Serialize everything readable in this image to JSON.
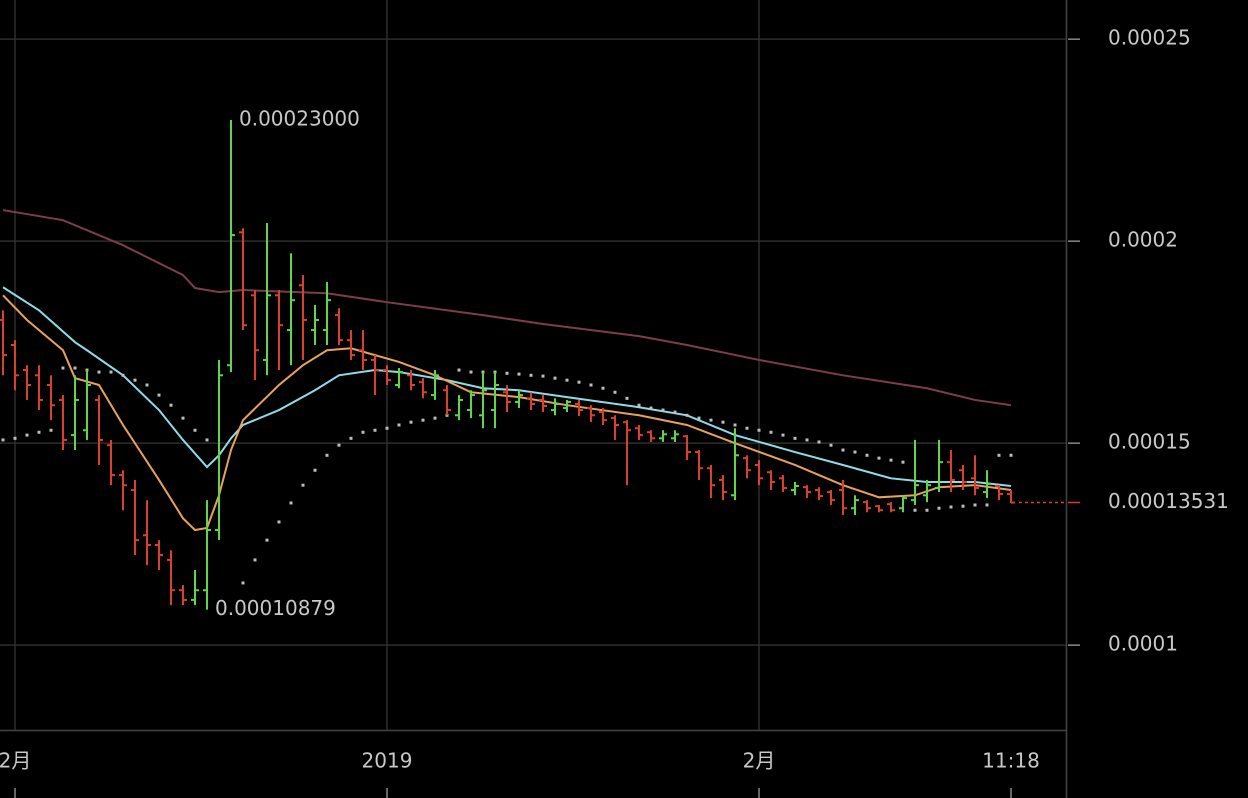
{
  "chart_data": {
    "type": "ohlc",
    "categories": [
      null,
      "2月",
      null,
      null,
      null,
      null,
      null,
      null,
      null,
      null,
      null,
      null,
      null,
      null,
      null,
      null,
      null,
      null,
      null,
      null,
      null,
      null,
      null,
      null,
      null,
      null,
      null,
      null,
      null,
      null,
      null,
      null,
      "2019",
      null,
      null,
      null,
      null,
      null,
      null,
      null,
      null,
      null,
      null,
      null,
      null,
      null,
      null,
      null,
      null,
      null,
      null,
      null,
      null,
      null,
      null,
      null,
      null,
      null,
      null,
      null,
      null,
      null,
      null,
      "2月",
      null,
      null,
      null,
      null,
      null,
      null,
      null,
      null,
      null,
      null,
      null,
      null,
      null,
      null,
      null,
      null,
      null,
      null,
      null,
      null,
      "11:18"
    ],
    "open": [
      0.0001805,
      0.0001743,
      0.0001681,
      0.0001668,
      0.0001644,
      0.0001607,
      0.000152,
      0.0001532,
      0.0001607,
      0.0001495,
      0.0001421,
      0.0001384,
      0.0001272,
      0.0001248,
      0.0001211,
      0.0001136,
      0.0001112,
      0.0001136,
      0.0001285,
      0.0001693,
      0.0002022,
      0.0001866,
      0.0001706,
      0.0001866,
      0.000178,
      0.0001891,
      0.000178,
      0.000178,
      0.0001817,
      0.0001755,
      0.000173,
      0.0001706,
      0.0001681,
      0.0001644,
      0.0001668,
      0.0001651,
      0.0001619,
      0.0001631,
      0.0001569,
      0.0001582,
      0.0001569,
      0.0001582,
      0.0001626,
      0.0001602,
      0.0001611,
      0.0001607,
      0.0001582,
      0.0001587,
      0.0001597,
      0.0001587,
      0.0001577,
      0.0001562,
      0.0001552,
      0.0001537,
      0.0001527,
      0.0001512,
      0.0001512,
      0.0001517,
      0.0001478,
      0.0001438,
      0.0001409,
      0.0001371,
      0.0001463,
      0.0001446,
      0.0001428,
      0.0001413,
      0.0001384,
      0.0001391,
      0.0001384,
      0.0001379,
      0.0001384,
      0.0001339,
      0.0001354,
      0.0001344,
      0.0001349,
      0.0001339,
      0.0001359,
      0.0001371,
      0.0001389,
      0.0001453,
      0.0001433,
      0.0001413,
      0.0001379,
      0.0001394,
      0.0001374
    ],
    "high": [
      0.0001829,
      0.0001755,
      0.0001693,
      0.0001693,
      0.0001668,
      0.0001619,
      0.0001668,
      0.0001681,
      0.0001619,
      0.0001508,
      0.0001433,
      0.0001409,
      0.0001359,
      0.000126,
      0.0001235,
      0.0001149,
      0.0001186,
      0.0001359,
      0.0001706,
      0.00023,
      0.0002032,
      0.0001879,
      0.0002045,
      0.0001879,
      0.000197,
      0.0001916,
      0.0001842,
      0.0001899,
      0.0001834,
      0.000178,
      0.000178,
      0.0001718,
      0.0001693,
      0.0001686,
      0.0001681,
      0.0001661,
      0.0001681,
      0.0001644,
      0.0001619,
      0.0001631,
      0.0001676,
      0.0001676,
      0.0001644,
      0.0001631,
      0.0001626,
      0.0001619,
      0.0001611,
      0.0001607,
      0.0001607,
      0.0001594,
      0.0001587,
      0.0001569,
      0.0001557,
      0.0001545,
      0.0001532,
      0.0001532,
      0.0001532,
      0.000152,
      0.0001483,
      0.0001446,
      0.0001421,
      0.0001537,
      0.000147,
      0.0001458,
      0.0001433,
      0.0001421,
      0.0001404,
      0.0001396,
      0.0001391,
      0.0001384,
      0.0001409,
      0.0001371,
      0.0001359,
      0.0001347,
      0.0001354,
      0.0001371,
      0.0001508,
      0.0001409,
      0.0001508,
      0.0001483,
      0.0001446,
      0.000147,
      0.0001433,
      0.0001396,
      0.0001384
    ],
    "low": [
      0.0001668,
      0.0001631,
      0.0001607,
      0.0001582,
      0.0001557,
      0.0001483,
      0.0001483,
      0.0001508,
      0.0001446,
      0.0001396,
      0.0001334,
      0.0001223,
      0.0001198,
      0.0001186,
      0.0001099,
      0.0001099,
      0.0001099,
      0.00010879,
      0.000126,
      0.0001676,
      0.000178,
      0.0001656,
      0.0001668,
      0.0001681,
      0.0001693,
      0.0001706,
      0.0001743,
      0.0001743,
      0.0001743,
      0.0001706,
      0.0001681,
      0.0001619,
      0.0001644,
      0.0001636,
      0.0001631,
      0.0001611,
      0.0001607,
      0.0001569,
      0.0001557,
      0.0001562,
      0.0001537,
      0.0001537,
      0.0001577,
      0.0001587,
      0.0001582,
      0.0001577,
      0.0001569,
      0.0001577,
      0.0001567,
      0.0001552,
      0.0001545,
      0.0001508,
      0.0001396,
      0.0001508,
      0.0001503,
      0.0001503,
      0.0001503,
      0.0001458,
      0.0001409,
      0.0001364,
      0.0001359,
      0.0001359,
      0.0001413,
      0.0001396,
      0.0001384,
      0.0001379,
      0.0001371,
      0.0001364,
      0.0001359,
      0.0001347,
      0.0001322,
      0.0001322,
      0.0001329,
      0.0001329,
      0.0001329,
      0.0001329,
      0.0001347,
      0.0001354,
      0.0001379,
      0.0001379,
      0.0001384,
      0.0001371,
      0.0001364,
      0.0001359,
      0.0001352
    ],
    "close": [
      0.0001718,
      0.0001668,
      0.0001644,
      0.0001607,
      0.0001594,
      0.0001508,
      0.0001607,
      0.0001644,
      0.0001508,
      0.0001421,
      0.0001396,
      0.000126,
      0.0001248,
      0.0001223,
      0.0001136,
      0.0001112,
      0.0001136,
      0.0001285,
      0.0001668,
      0.0002015,
      0.0001792,
      0.000173,
      0.0001866,
      0.0001792,
      0.0001854,
      0.0001805,
      0.0001805,
      0.0001854,
      0.0001755,
      0.0001718,
      0.0001706,
      0.0001681,
      0.0001656,
      0.0001676,
      0.0001644,
      0.0001626,
      0.0001668,
      0.0001582,
      0.0001607,
      0.0001619,
      0.0001631,
      0.0001644,
      0.0001602,
      0.0001619,
      0.0001597,
      0.0001592,
      0.0001597,
      0.0001602,
      0.0001582,
      0.0001569,
      0.0001557,
      0.0001545,
      0.0001532,
      0.000152,
      0.0001512,
      0.0001522,
      0.0001522,
      0.0001478,
      0.0001438,
      0.0001396,
      0.0001379,
      0.000147,
      0.0001433,
      0.0001413,
      0.0001404,
      0.0001389,
      0.0001394,
      0.0001379,
      0.0001369,
      0.0001359,
      0.0001339,
      0.0001359,
      0.0001339,
      0.0001334,
      0.0001334,
      0.0001364,
      0.0001396,
      0.0001396,
      0.0001453,
      0.0001409,
      0.0001404,
      0.0001389,
      0.0001399,
      0.0001374,
      0.00013531
    ],
    "colors": {
      "up": "#5ed64a",
      "down": "#d8412f"
    },
    "lines": [
      {
        "color": "#7e3d4c",
        "x": [
          0,
          5,
          10,
          15,
          16,
          18,
          20,
          27,
          32,
          40,
          45,
          53,
          57,
          63,
          70,
          77,
          81,
          84
        ],
        "values": [
          0.0002077,
          0.0002052,
          0.000199,
          0.0001916,
          0.0001884,
          0.0001874,
          0.0001879,
          0.0001871,
          0.0001849,
          0.0001817,
          0.0001795,
          0.0001765,
          0.0001743,
          0.0001706,
          0.0001668,
          0.0001636,
          0.0001607,
          0.0001594
        ]
      },
      {
        "color": "#8fdbe8",
        "x": [
          0,
          3,
          6,
          7,
          10,
          13,
          15,
          17,
          18,
          19,
          20,
          23,
          26,
          28,
          31,
          33,
          37,
          40,
          43,
          47,
          53,
          57,
          61,
          66,
          70,
          74,
          77,
          81,
          84
        ],
        "values": [
          0.0001886,
          0.0001829,
          0.000175,
          0.000173,
          0.0001668,
          0.0001582,
          0.0001508,
          0.0001441,
          0.000147,
          0.0001512,
          0.0001545,
          0.0001582,
          0.0001631,
          0.0001668,
          0.0001681,
          0.0001676,
          0.0001656,
          0.0001636,
          0.0001631,
          0.0001614,
          0.0001589,
          0.0001569,
          0.000152,
          0.0001478,
          0.0001446,
          0.0001413,
          0.0001404,
          0.0001404,
          0.0001394
        ]
      },
      {
        "color": "#e9a15c",
        "x": [
          0,
          2,
          5,
          6,
          8,
          10,
          13,
          15,
          16,
          17,
          18,
          19,
          20,
          23,
          25,
          27,
          29,
          31,
          33,
          36,
          39,
          43,
          47,
          53,
          57,
          61,
          66,
          70,
          73,
          76,
          78,
          81,
          84
        ],
        "values": [
          0.0001866,
          0.0001805,
          0.000173,
          0.0001661,
          0.0001644,
          0.0001545,
          0.0001409,
          0.0001314,
          0.0001285,
          0.000129,
          0.0001371,
          0.0001483,
          0.0001557,
          0.0001644,
          0.0001693,
          0.000173,
          0.0001735,
          0.0001718,
          0.0001701,
          0.0001668,
          0.0001626,
          0.0001614,
          0.0001594,
          0.0001569,
          0.0001545,
          0.00015,
          0.0001446,
          0.0001396,
          0.0001366,
          0.0001371,
          0.0001391,
          0.0001396,
          0.0001384
        ]
      }
    ],
    "dots": {
      "color": "#bdbdbd",
      "x": [
        0,
        1,
        2,
        3,
        4,
        5,
        6,
        7,
        8,
        9,
        10,
        11,
        12,
        13,
        14,
        15,
        16,
        17,
        20,
        21,
        22,
        23,
        24,
        25,
        26,
        27,
        28,
        29,
        30,
        31,
        32,
        33,
        34,
        35,
        36,
        37,
        38,
        39,
        40,
        41,
        42,
        43,
        44,
        45,
        46,
        47,
        48,
        49,
        50,
        51,
        52,
        53,
        54,
        55,
        56,
        57,
        58,
        59,
        60,
        61,
        62,
        63,
        64,
        65,
        66,
        67,
        68,
        69,
        70,
        71,
        72,
        73,
        74,
        75,
        76,
        77,
        78,
        79,
        80,
        81,
        82,
        83,
        84
      ],
      "values": [
        0.0001508,
        0.0001512,
        0.000152,
        0.0001527,
        0.0001532,
        0.0001686,
        0.0001686,
        0.0001681,
        0.0001676,
        0.0001676,
        0.0001668,
        0.0001656,
        0.0001644,
        0.0001619,
        0.0001594,
        0.0001562,
        0.0001532,
        0.0001508,
        0.0001154,
        0.0001211,
        0.000126,
        0.0001305,
        0.0001352,
        0.0001396,
        0.0001433,
        0.000147,
        0.0001495,
        0.0001512,
        0.0001527,
        0.0001532,
        0.0001537,
        0.0001545,
        0.0001552,
        0.0001557,
        0.0001562,
        0.0001569,
        0.0001681,
        0.0001676,
        0.0001676,
        0.0001676,
        0.0001673,
        0.0001671,
        0.0001668,
        0.0001666,
        0.0001661,
        0.0001656,
        0.0001651,
        0.0001644,
        0.0001636,
        0.0001626,
        0.0001611,
        0.0001594,
        0.0001587,
        0.0001582,
        0.0001577,
        0.0001569,
        0.0001562,
        0.0001557,
        0.0001552,
        0.0001545,
        0.0001537,
        0.0001532,
        0.0001527,
        0.000152,
        0.0001512,
        0.0001508,
        0.0001503,
        0.0001495,
        0.0001483,
        0.0001478,
        0.000147,
        0.0001463,
        0.0001458,
        0.0001453,
        0.0001334,
        0.0001334,
        0.0001339,
        0.0001342,
        0.0001344,
        0.0001347,
        0.0001347,
        0.000147,
        0.000147
      ]
    },
    "annotations": [
      {
        "x": 19,
        "value": 0.00023,
        "label": "0.00023000"
      },
      {
        "x": 17,
        "value": 0.00010879
      }
    ],
    "last_price": {
      "value": 0.00013531,
      "color": "#d8412f"
    },
    "ylim": [
      7.9e-05,
      0.0002597
    ],
    "yticks": [
      0.0001,
      0.00015,
      0.0002,
      0.00025
    ],
    "grid": true
  }
}
